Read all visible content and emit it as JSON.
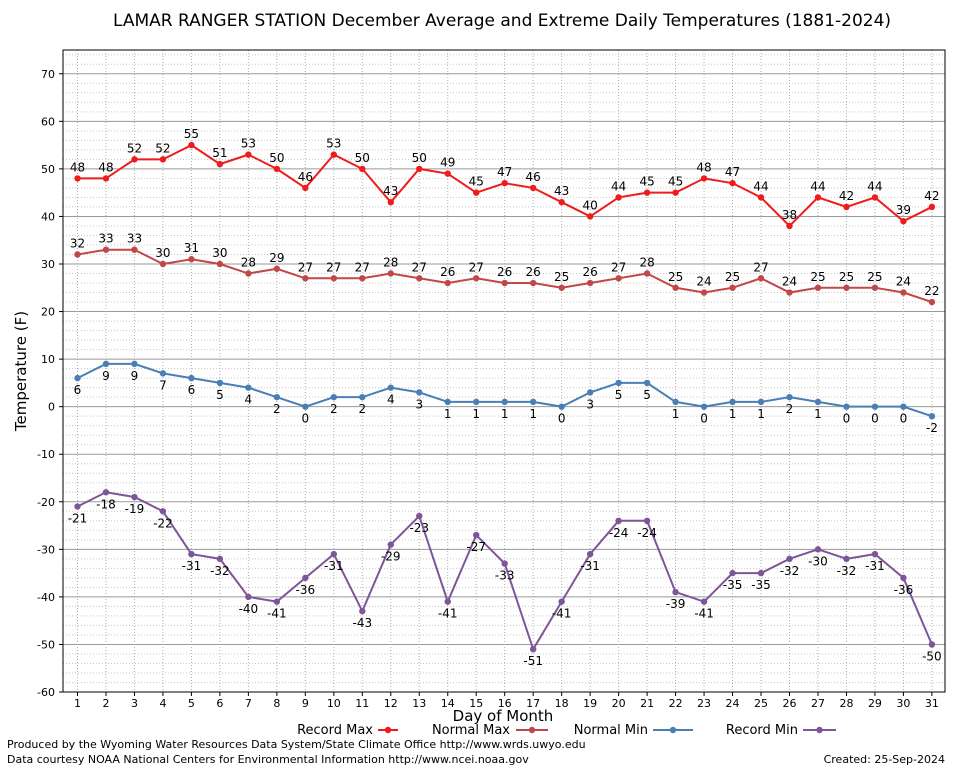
{
  "chart_data": {
    "type": "line",
    "title": "LAMAR RANGER STATION December Average and Extreme Daily Temperatures (1881-2024)",
    "xlabel": "Day of Month",
    "ylabel": "Temperature (F)",
    "ylim": [
      -60,
      75
    ],
    "yticks": [
      70,
      60,
      50,
      40,
      30,
      20,
      10,
      0,
      -10,
      -20,
      -30,
      -40,
      -50,
      -60
    ],
    "grid": true,
    "legend_position": "bottom",
    "x": [
      1,
      2,
      3,
      4,
      5,
      6,
      7,
      8,
      9,
      10,
      11,
      12,
      13,
      14,
      15,
      16,
      17,
      18,
      19,
      20,
      21,
      22,
      23,
      24,
      25,
      26,
      27,
      28,
      29,
      30,
      31
    ],
    "series": [
      {
        "name": "Record Max",
        "color": "#ee1c1c",
        "label_position": "above",
        "values": [
          48,
          48,
          52,
          52,
          55,
          51,
          53,
          50,
          46,
          53,
          50,
          43,
          50,
          49,
          45,
          47,
          46,
          43,
          40,
          44,
          45,
          45,
          48,
          47,
          44,
          38,
          44,
          42,
          44,
          39,
          42
        ]
      },
      {
        "name": "Normal Max",
        "color": "#c04848",
        "label_position": "above",
        "values": [
          32,
          33,
          33,
          30,
          31,
          30,
          28,
          29,
          27,
          27,
          27,
          28,
          27,
          26,
          27,
          26,
          26,
          25,
          26,
          27,
          28,
          25,
          24,
          25,
          27,
          24,
          25,
          25,
          25,
          24,
          22
        ]
      },
      {
        "name": "Normal Min",
        "color": "#4a7fb5",
        "label_position": "below",
        "values": [
          6,
          9,
          9,
          7,
          6,
          5,
          4,
          2,
          0,
          2,
          2,
          4,
          3,
          1,
          1,
          1,
          1,
          0,
          3,
          5,
          5,
          1,
          0,
          1,
          1,
          2,
          1,
          0,
          0,
          0,
          -2
        ]
      },
      {
        "name": "Record Min",
        "color": "#7d5699",
        "label_position": "below",
        "values": [
          -21,
          -18,
          -19,
          -22,
          -31,
          -32,
          -40,
          -41,
          -36,
          -31,
          -43,
          -29,
          -23,
          -41,
          -27,
          -33,
          -51,
          -41,
          -31,
          -24,
          -24,
          -39,
          -41,
          -35,
          -35,
          -32,
          -30,
          -32,
          -31,
          -36,
          -50
        ]
      }
    ]
  },
  "footer": {
    "produced_by": "Produced by the Wyoming Water Resources Data System/State Climate Office http://www.wrds.uwyo.edu",
    "courtesy": "Data courtesy NOAA National Centers for Environmental Information http://www.ncei.noaa.gov",
    "created": "Created: 25-Sep-2024"
  }
}
